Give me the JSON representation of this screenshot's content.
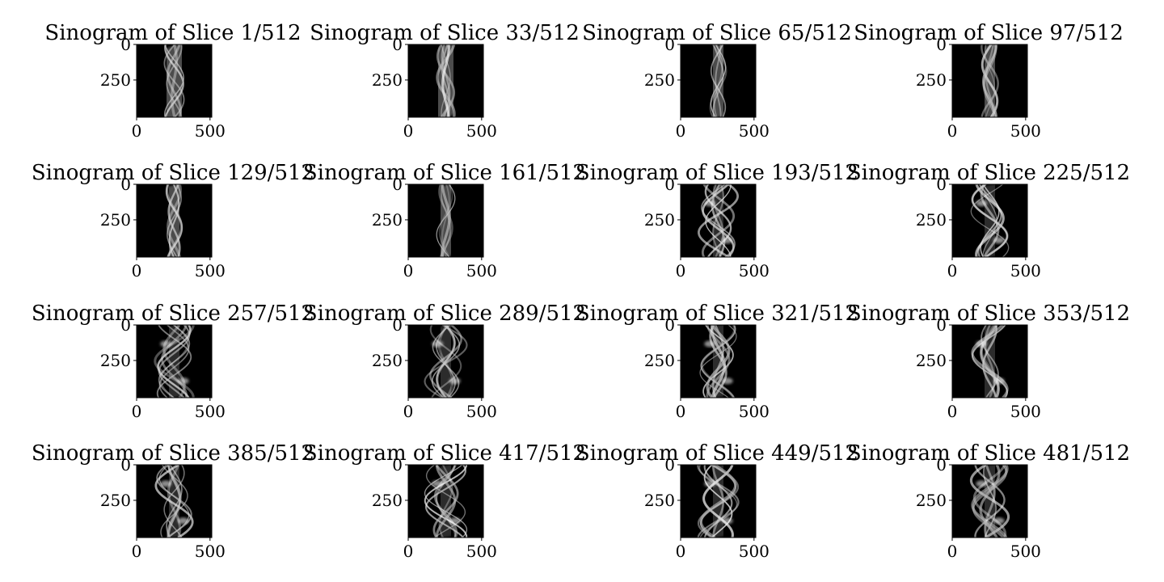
{
  "figure": {
    "rows": 4,
    "cols": 4,
    "colormap": "gray",
    "background": "#ffffff"
  },
  "chart_data": [
    {
      "type": "heatmap",
      "title": "Sinogram of Slice 1/512",
      "slice": 1,
      "x_ticks": [
        "0",
        "500"
      ],
      "y_ticks": [
        "0",
        "250"
      ],
      "xlim": [
        0,
        512
      ],
      "ylim": [
        0,
        512
      ]
    },
    {
      "type": "heatmap",
      "title": "Sinogram of Slice 33/512",
      "slice": 33,
      "x_ticks": [
        "0",
        "500"
      ],
      "y_ticks": [
        "0",
        "250"
      ],
      "xlim": [
        0,
        512
      ],
      "ylim": [
        0,
        512
      ]
    },
    {
      "type": "heatmap",
      "title": "Sinogram of Slice 65/512",
      "slice": 65,
      "x_ticks": [
        "0",
        "500"
      ],
      "y_ticks": [
        "0",
        "250"
      ],
      "xlim": [
        0,
        512
      ],
      "ylim": [
        0,
        512
      ]
    },
    {
      "type": "heatmap",
      "title": "Sinogram of Slice 97/512",
      "slice": 97,
      "x_ticks": [
        "0",
        "500"
      ],
      "y_ticks": [
        "0",
        "250"
      ],
      "xlim": [
        0,
        512
      ],
      "ylim": [
        0,
        512
      ]
    },
    {
      "type": "heatmap",
      "title": "Sinogram of Slice 129/512",
      "slice": 129,
      "x_ticks": [
        "0",
        "500"
      ],
      "y_ticks": [
        "0",
        "250"
      ],
      "xlim": [
        0,
        512
      ],
      "ylim": [
        0,
        512
      ]
    },
    {
      "type": "heatmap",
      "title": "Sinogram of Slice 161/512",
      "slice": 161,
      "x_ticks": [
        "0",
        "500"
      ],
      "y_ticks": [
        "0",
        "250"
      ],
      "xlim": [
        0,
        512
      ],
      "ylim": [
        0,
        512
      ]
    },
    {
      "type": "heatmap",
      "title": "Sinogram of Slice 193/512",
      "slice": 193,
      "x_ticks": [
        "0",
        "500"
      ],
      "y_ticks": [
        "0",
        "250"
      ],
      "xlim": [
        0,
        512
      ],
      "ylim": [
        0,
        512
      ]
    },
    {
      "type": "heatmap",
      "title": "Sinogram of Slice 225/512",
      "slice": 225,
      "x_ticks": [
        "0",
        "500"
      ],
      "y_ticks": [
        "0",
        "250"
      ],
      "xlim": [
        0,
        512
      ],
      "ylim": [
        0,
        512
      ]
    },
    {
      "type": "heatmap",
      "title": "Sinogram of Slice 257/512",
      "slice": 257,
      "x_ticks": [
        "0",
        "500"
      ],
      "y_ticks": [
        "0",
        "250"
      ],
      "xlim": [
        0,
        512
      ],
      "ylim": [
        0,
        512
      ]
    },
    {
      "type": "heatmap",
      "title": "Sinogram of Slice 289/512",
      "slice": 289,
      "x_ticks": [
        "0",
        "500"
      ],
      "y_ticks": [
        "0",
        "250"
      ],
      "xlim": [
        0,
        512
      ],
      "ylim": [
        0,
        512
      ]
    },
    {
      "type": "heatmap",
      "title": "Sinogram of Slice 321/512",
      "slice": 321,
      "x_ticks": [
        "0",
        "500"
      ],
      "y_ticks": [
        "0",
        "250"
      ],
      "xlim": [
        0,
        512
      ],
      "ylim": [
        0,
        512
      ]
    },
    {
      "type": "heatmap",
      "title": "Sinogram of Slice 353/512",
      "slice": 353,
      "x_ticks": [
        "0",
        "500"
      ],
      "y_ticks": [
        "0",
        "250"
      ],
      "xlim": [
        0,
        512
      ],
      "ylim": [
        0,
        512
      ]
    },
    {
      "type": "heatmap",
      "title": "Sinogram of Slice 385/512",
      "slice": 385,
      "x_ticks": [
        "0",
        "500"
      ],
      "y_ticks": [
        "0",
        "250"
      ],
      "xlim": [
        0,
        512
      ],
      "ylim": [
        0,
        512
      ]
    },
    {
      "type": "heatmap",
      "title": "Sinogram of Slice 417/512",
      "slice": 417,
      "x_ticks": [
        "0",
        "500"
      ],
      "y_ticks": [
        "0",
        "250"
      ],
      "xlim": [
        0,
        512
      ],
      "ylim": [
        0,
        512
      ]
    },
    {
      "type": "heatmap",
      "title": "Sinogram of Slice 449/512",
      "slice": 449,
      "x_ticks": [
        "0",
        "500"
      ],
      "y_ticks": [
        "0",
        "250"
      ],
      "xlim": [
        0,
        512
      ],
      "ylim": [
        0,
        512
      ]
    },
    {
      "type": "heatmap",
      "title": "Sinogram of Slice 481/512",
      "slice": 481,
      "x_ticks": [
        "0",
        "500"
      ],
      "y_ticks": [
        "0",
        "250"
      ],
      "xlim": [
        0,
        512
      ],
      "ylim": [
        0,
        512
      ]
    }
  ]
}
